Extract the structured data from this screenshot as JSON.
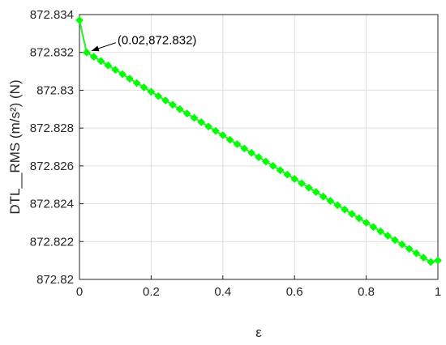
{
  "chart_data": {
    "type": "line",
    "xlabel": "ε",
    "ylabel": "DTL__RMS (m/s²) (N)",
    "xlim": [
      0,
      1
    ],
    "ylim": [
      872.82,
      872.834
    ],
    "x_ticks": [
      "0",
      "0.2",
      "0.4",
      "0.6",
      "0.8",
      "1"
    ],
    "y_ticks": [
      "872.82",
      "872.822",
      "872.824",
      "872.826",
      "872.828",
      "872.83",
      "872.832",
      "872.834"
    ],
    "grid": true,
    "series": [
      {
        "line_color": "#33ee33",
        "marker_color": "#00ff00",
        "marker": "diamond",
        "x": [
          0,
          0.02,
          0.04,
          0.06,
          0.08,
          0.1,
          0.12,
          0.14,
          0.16,
          0.18,
          0.2,
          0.22,
          0.24,
          0.26,
          0.28,
          0.3,
          0.32,
          0.34,
          0.36,
          0.38,
          0.4,
          0.42,
          0.44,
          0.46,
          0.48,
          0.5,
          0.52,
          0.54,
          0.56,
          0.58,
          0.6,
          0.62,
          0.64,
          0.66,
          0.68,
          0.7,
          0.72,
          0.74,
          0.76,
          0.78,
          0.8,
          0.82,
          0.84,
          0.86,
          0.88,
          0.9,
          0.92,
          0.94,
          0.96,
          0.98,
          1
        ],
        "y": [
          872.8337,
          872.832,
          872.83177,
          872.83154,
          872.83131,
          872.83108,
          872.83085,
          872.83061,
          872.83038,
          872.83015,
          872.82992,
          872.82969,
          872.82946,
          872.82923,
          872.829,
          872.82877,
          872.82854,
          872.82831,
          872.82808,
          872.82785,
          872.82762,
          872.82738,
          872.82715,
          872.82692,
          872.82669,
          872.82646,
          872.82623,
          872.826,
          872.82577,
          872.82554,
          872.82531,
          872.82508,
          872.82485,
          872.82462,
          872.82438,
          872.82415,
          872.82392,
          872.82369,
          872.82346,
          872.82323,
          872.823,
          872.82277,
          872.82254,
          872.82231,
          872.82208,
          872.82185,
          872.82162,
          872.82138,
          872.82115,
          872.82092,
          872.821
        ]
      }
    ],
    "annotations": [
      {
        "text": "(0.02,872.832)",
        "x": 0.02,
        "y": 872.832
      }
    ]
  }
}
